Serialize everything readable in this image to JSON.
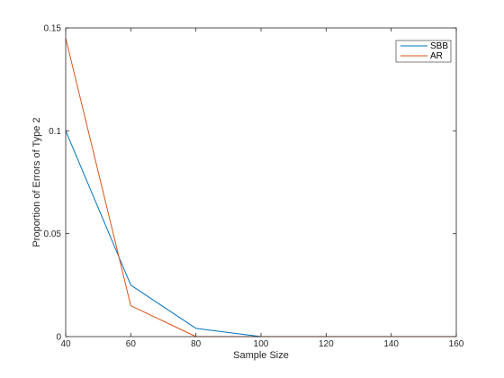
{
  "chart_data": {
    "type": "line",
    "xlabel": "Sample Size",
    "ylabel": "Proportion of Errors of Type 2",
    "xlim": [
      40,
      160
    ],
    "ylim": [
      0,
      0.15
    ],
    "x": [
      40,
      60,
      80,
      100,
      120,
      140,
      160
    ],
    "x_ticks": [
      "40",
      "60",
      "80",
      "100",
      "120",
      "140",
      "160"
    ],
    "y_ticks_values": [
      0,
      0.05,
      0.1,
      0.15
    ],
    "y_ticks": [
      "0",
      "0.05",
      "0.1",
      "0.15"
    ],
    "grid": false,
    "legend_position": "top-right",
    "series": [
      {
        "name": "SBB",
        "color": "#0072BD",
        "values": [
          0.1,
          0.025,
          0.004,
          0,
          0,
          0,
          0
        ]
      },
      {
        "name": "AR",
        "color": "#D95319",
        "values": [
          0.145,
          0.015,
          0,
          0,
          0,
          0,
          0
        ]
      }
    ]
  }
}
